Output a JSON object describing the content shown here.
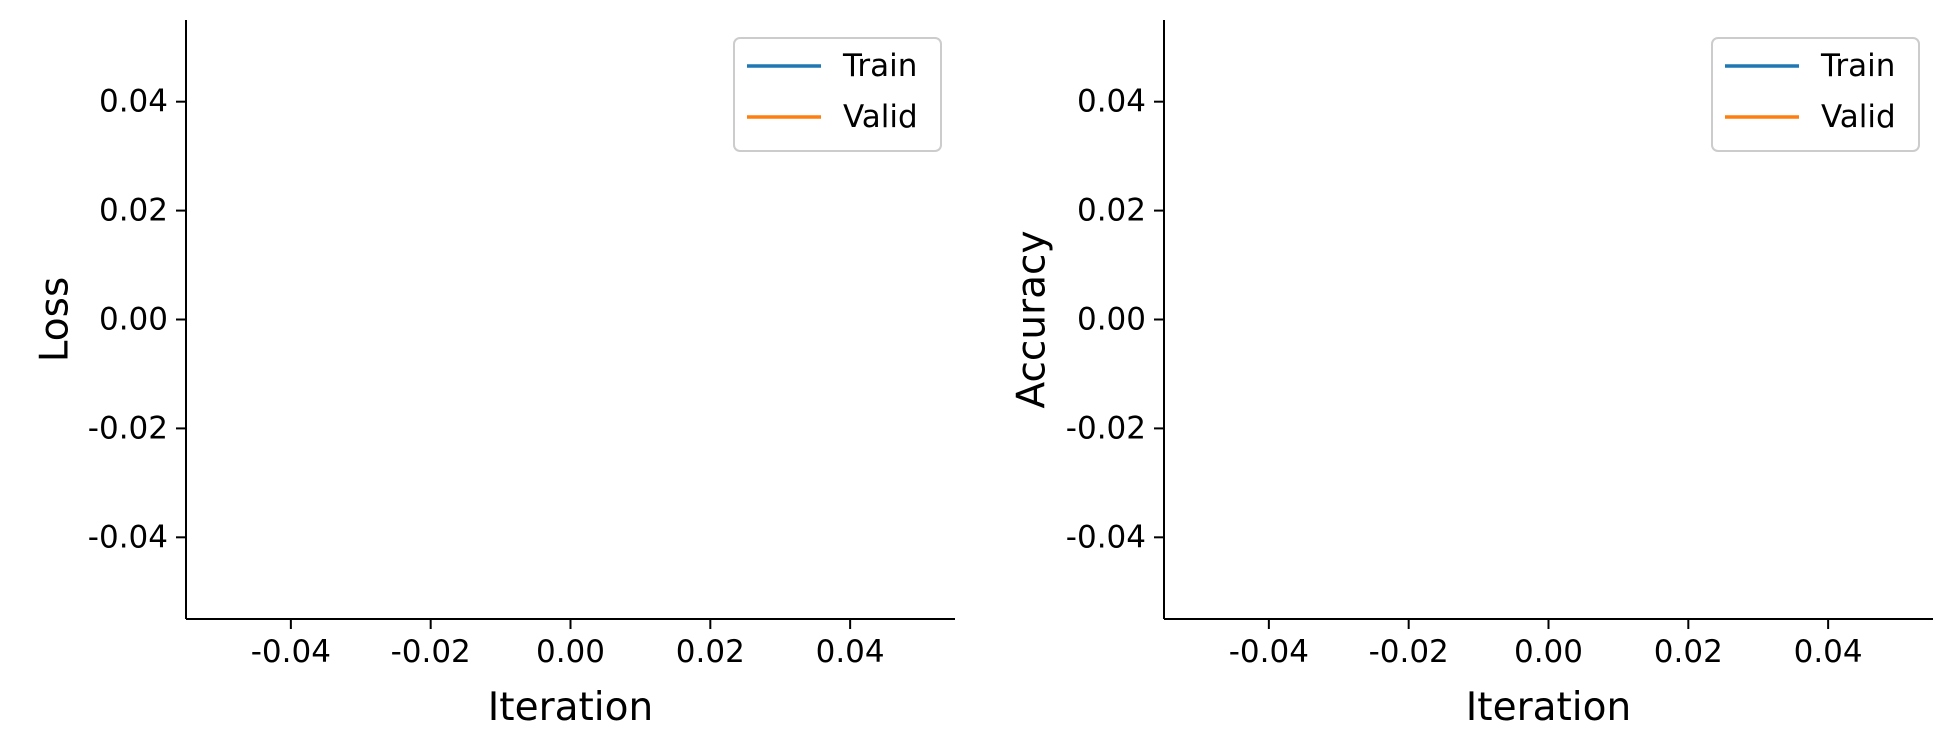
{
  "chart_data": [
    {
      "type": "line",
      "xlabel": "Iteration",
      "ylabel": "Loss",
      "xlim": [
        -0.055,
        0.055
      ],
      "ylim": [
        -0.055,
        0.055
      ],
      "xticks": [
        -0.04,
        -0.02,
        0.0,
        0.02,
        0.04
      ],
      "xtick_labels": [
        "-0.04",
        "-0.02",
        "0.00",
        "0.02",
        "0.04"
      ],
      "yticks": [
        0.04,
        0.02,
        0.0,
        -0.02,
        -0.04
      ],
      "ytick_labels": [
        "0.04",
        "0.02",
        "0.00",
        "-0.02",
        "-0.04"
      ],
      "grid": false,
      "legend_position": "top-right",
      "series": [
        {
          "name": "Train",
          "color": "#1f77b4",
          "x": [],
          "y": []
        },
        {
          "name": "Valid",
          "color": "#ff7f0e",
          "x": [],
          "y": []
        }
      ]
    },
    {
      "type": "line",
      "xlabel": "Iteration",
      "ylabel": "Accuracy",
      "xlim": [
        -0.055,
        0.055
      ],
      "ylim": [
        -0.055,
        0.055
      ],
      "xticks": [
        -0.04,
        -0.02,
        0.0,
        0.02,
        0.04
      ],
      "xtick_labels": [
        "-0.04",
        "-0.02",
        "0.00",
        "0.02",
        "0.04"
      ],
      "yticks": [
        0.04,
        0.02,
        0.0,
        -0.02,
        -0.04
      ],
      "ytick_labels": [
        "0.04",
        "0.02",
        "0.00",
        "-0.02",
        "-0.04"
      ],
      "grid": false,
      "legend_position": "top-right",
      "series": [
        {
          "name": "Train",
          "color": "#1f77b4",
          "x": [],
          "y": []
        },
        {
          "name": "Valid",
          "color": "#ff7f0e",
          "x": [],
          "y": []
        }
      ]
    }
  ]
}
